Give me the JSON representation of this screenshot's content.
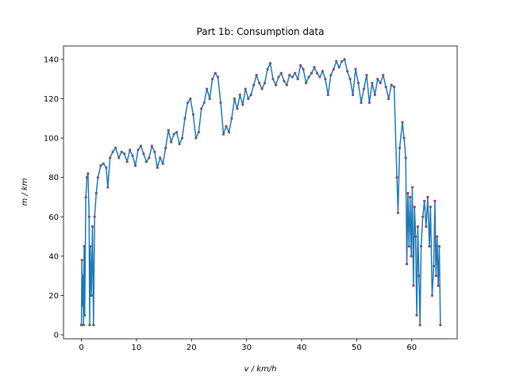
{
  "chart_data": {
    "type": "line",
    "title": "Part 1b: Consumption data",
    "x_label": "v / km/h",
    "y_label": "m / km",
    "x": [
      0,
      0.1,
      0.2,
      0.3,
      0.4,
      0.5,
      0.6,
      0.8,
      1.0,
      1.2,
      1.4,
      1.5,
      1.6,
      1.8,
      2.0,
      2.2,
      2.4,
      2.7,
      3.0,
      3.5,
      4.0,
      4.5,
      4.8,
      5.2,
      5.7,
      6.2,
      6.8,
      7.3,
      7.8,
      8.3,
      8.8,
      9.3,
      9.8,
      10.3,
      10.8,
      11.3,
      11.8,
      12.3,
      12.8,
      13.3,
      13.8,
      14.3,
      14.8,
      15.3,
      15.8,
      16.3,
      16.8,
      17.3,
      17.8,
      18.3,
      18.8,
      19.3,
      19.8,
      20.3,
      20.8,
      21.3,
      21.8,
      22.3,
      22.8,
      23.3,
      23.8,
      24.3,
      24.8,
      25.3,
      25.8,
      26.3,
      26.8,
      27.3,
      27.8,
      28.3,
      28.8,
      29.3,
      29.8,
      30.3,
      30.8,
      31.3,
      31.8,
      32.3,
      32.8,
      33.3,
      33.8,
      34.3,
      34.8,
      35.3,
      35.8,
      36.3,
      36.8,
      37.3,
      37.8,
      38.3,
      38.8,
      39.3,
      39.8,
      40.3,
      40.8,
      41.3,
      41.8,
      42.3,
      42.8,
      43.3,
      43.8,
      44.3,
      44.8,
      45.3,
      45.8,
      46.3,
      46.8,
      47.3,
      47.8,
      48.3,
      48.8,
      49.3,
      49.8,
      50.3,
      50.8,
      51.3,
      51.8,
      52.3,
      52.8,
      53.3,
      53.8,
      54.3,
      54.8,
      55.3,
      55.8,
      56.3,
      56.8,
      57.3,
      57.5,
      57.8,
      58.3,
      58.6,
      58.9,
      59.1,
      59.3,
      59.5,
      59.7,
      59.9,
      60.1,
      60.3,
      60.5,
      60.7,
      60.9,
      61.1,
      61.3,
      61.5,
      61.7,
      62.0,
      62.3,
      62.6,
      62.9,
      63.2,
      63.4,
      63.7,
      64.0,
      64.2,
      64.4,
      64.6,
      64.8,
      65.0,
      65.2
    ],
    "values": [
      5,
      38,
      15,
      30,
      5,
      45,
      10,
      70,
      80,
      82,
      60,
      5,
      45,
      20,
      55,
      5,
      60,
      72,
      80,
      86,
      87,
      85,
      75,
      90,
      93,
      95,
      90,
      93,
      92,
      88,
      94,
      91,
      86,
      94,
      96,
      92,
      88,
      90,
      96,
      93,
      85,
      90,
      87,
      95,
      104,
      98,
      102,
      103,
      97,
      100,
      110,
      118,
      120,
      112,
      100,
      103,
      115,
      118,
      125,
      120,
      130,
      133,
      131,
      118,
      102,
      106,
      103,
      110,
      120,
      115,
      122,
      117,
      125,
      120,
      122,
      127,
      132,
      128,
      125,
      128,
      135,
      138,
      130,
      127,
      131,
      133,
      129,
      127,
      132,
      131,
      133,
      130,
      137,
      135,
      128,
      131,
      133,
      136,
      133,
      131,
      134,
      130,
      122,
      132,
      135,
      139,
      136,
      139,
      140,
      134,
      130,
      122,
      135,
      128,
      118,
      125,
      132,
      118,
      128,
      122,
      130,
      128,
      132,
      126,
      120,
      127,
      126,
      80,
      62,
      95,
      108,
      100,
      90,
      36,
      72,
      45,
      70,
      40,
      75,
      25,
      65,
      50,
      10,
      55,
      30,
      5,
      45,
      60,
      68,
      55,
      70,
      45,
      65,
      20,
      35,
      68,
      30,
      50,
      25,
      45,
      5
    ],
    "color": "#1f77b4",
    "marker_color": "#d62728",
    "xlim": [
      -3.25,
      68.25
    ],
    "ylim": [
      -2.0,
      146.8
    ],
    "xticks": [
      0,
      10,
      20,
      30,
      40,
      50,
      60
    ],
    "yticks": [
      0,
      20,
      40,
      60,
      80,
      100,
      120,
      140
    ]
  }
}
